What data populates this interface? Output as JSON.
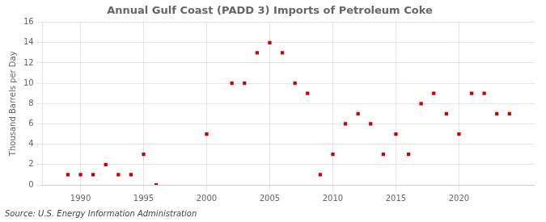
{
  "chart_data": {
    "type": "scatter",
    "title": "Annual Gulf Coast (PADD 3) Imports of Petroleum Coke",
    "ylabel": "Thousand Barrels per Day",
    "annotations": [
      "Source: U.S. Energy Information Administration"
    ],
    "x": [
      1989,
      1990,
      1991,
      1992,
      1993,
      1994,
      1995,
      1996,
      2000,
      2002,
      2003,
      2004,
      2005,
      2006,
      2007,
      2008,
      2009,
      2010,
      2011,
      2012,
      2013,
      2014,
      2015,
      2016,
      2017,
      2018,
      2019,
      2020,
      2021,
      2022,
      2023,
      2024
    ],
    "values": [
      1,
      1,
      1,
      2,
      1,
      1,
      3,
      0,
      5,
      10,
      10,
      13,
      14,
      13,
      10,
      9,
      1,
      3,
      6,
      7,
      6,
      3,
      5,
      3,
      8,
      9,
      7,
      5,
      9,
      9,
      7,
      7
    ],
    "color": "#cc0000",
    "marker": "square",
    "xlim": [
      1987,
      2026
    ],
    "xticks": [
      1990,
      1995,
      2000,
      2005,
      2010,
      2015,
      2020
    ],
    "ylim": [
      0,
      16
    ],
    "yticks": [
      0,
      2,
      4,
      6,
      8,
      10,
      12,
      14,
      16
    ],
    "grid": true
  }
}
